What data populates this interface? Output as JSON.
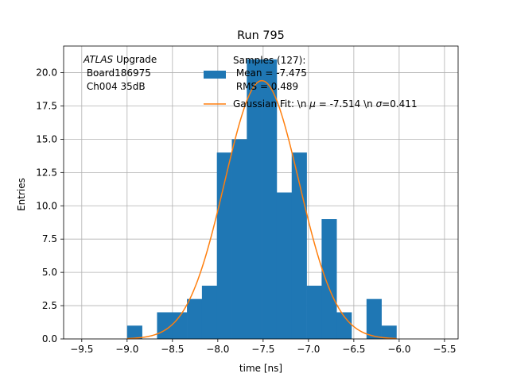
{
  "chart_data": {
    "type": "bar",
    "title": "Run 795",
    "xlabel": "time [ns]",
    "ylabel": "Entries",
    "xlim": [
      -9.7,
      -5.35
    ],
    "ylim": [
      0,
      22
    ],
    "grid": true,
    "x_ticks": [
      -9.5,
      -9.0,
      -8.5,
      -8.0,
      -7.5,
      -7.0,
      -6.5,
      -6.0,
      -5.5
    ],
    "x_tick_labels": [
      "−9.5",
      "−9.0",
      "−8.5",
      "−8.0",
      "−7.5",
      "−7.0",
      "−6.5",
      "−6.0",
      "−5.5"
    ],
    "y_ticks": [
      0.0,
      2.5,
      5.0,
      7.5,
      10.0,
      12.5,
      15.0,
      17.5,
      20.0
    ],
    "y_tick_labels": [
      "0.0",
      "2.5",
      "5.0",
      "7.5",
      "10.0",
      "12.5",
      "15.0",
      "17.5",
      "20.0"
    ],
    "histogram": {
      "name": "Samples (127)",
      "color": "#1f77b4",
      "bin_edges": [
        -9.0,
        -8.835,
        -8.67,
        -8.505,
        -8.34,
        -8.175,
        -8.01,
        -7.845,
        -7.68,
        -7.515,
        -7.35,
        -7.185,
        -7.02,
        -6.855,
        -6.69,
        -6.525,
        -6.36,
        -6.195,
        -6.03
      ],
      "counts": [
        1,
        0,
        2,
        2,
        3,
        4,
        14,
        15,
        21,
        21,
        11,
        14,
        4,
        9,
        2,
        0,
        3,
        1
      ]
    },
    "fit": {
      "name": "Gaussian Fit",
      "color": "#ff7f0e",
      "mu": -7.514,
      "sigma": 0.411,
      "amplitude": 19.4,
      "x_range": [
        -9.0,
        -6.03
      ]
    },
    "legend": {
      "placement": "top-center",
      "hist_lines": [
        "Samples (127):",
        " Mean = -7.475",
        " RMS = 0.489"
      ],
      "fit_line": "Gaussian Fit: \\n $\\mu$ = -7.514 \\n $\\sigma$=0.411",
      "fit_label_parts": [
        "Gaussian Fit: \\n ",
        "μ",
        " = -7.514 \\n ",
        "σ",
        "=0.411"
      ]
    },
    "annotation": {
      "placement": "top-left",
      "experiment": "ATLAS",
      "suffix": " Upgrade",
      "lines": [
        " Board186975",
        " Ch004 35dB"
      ]
    }
  }
}
